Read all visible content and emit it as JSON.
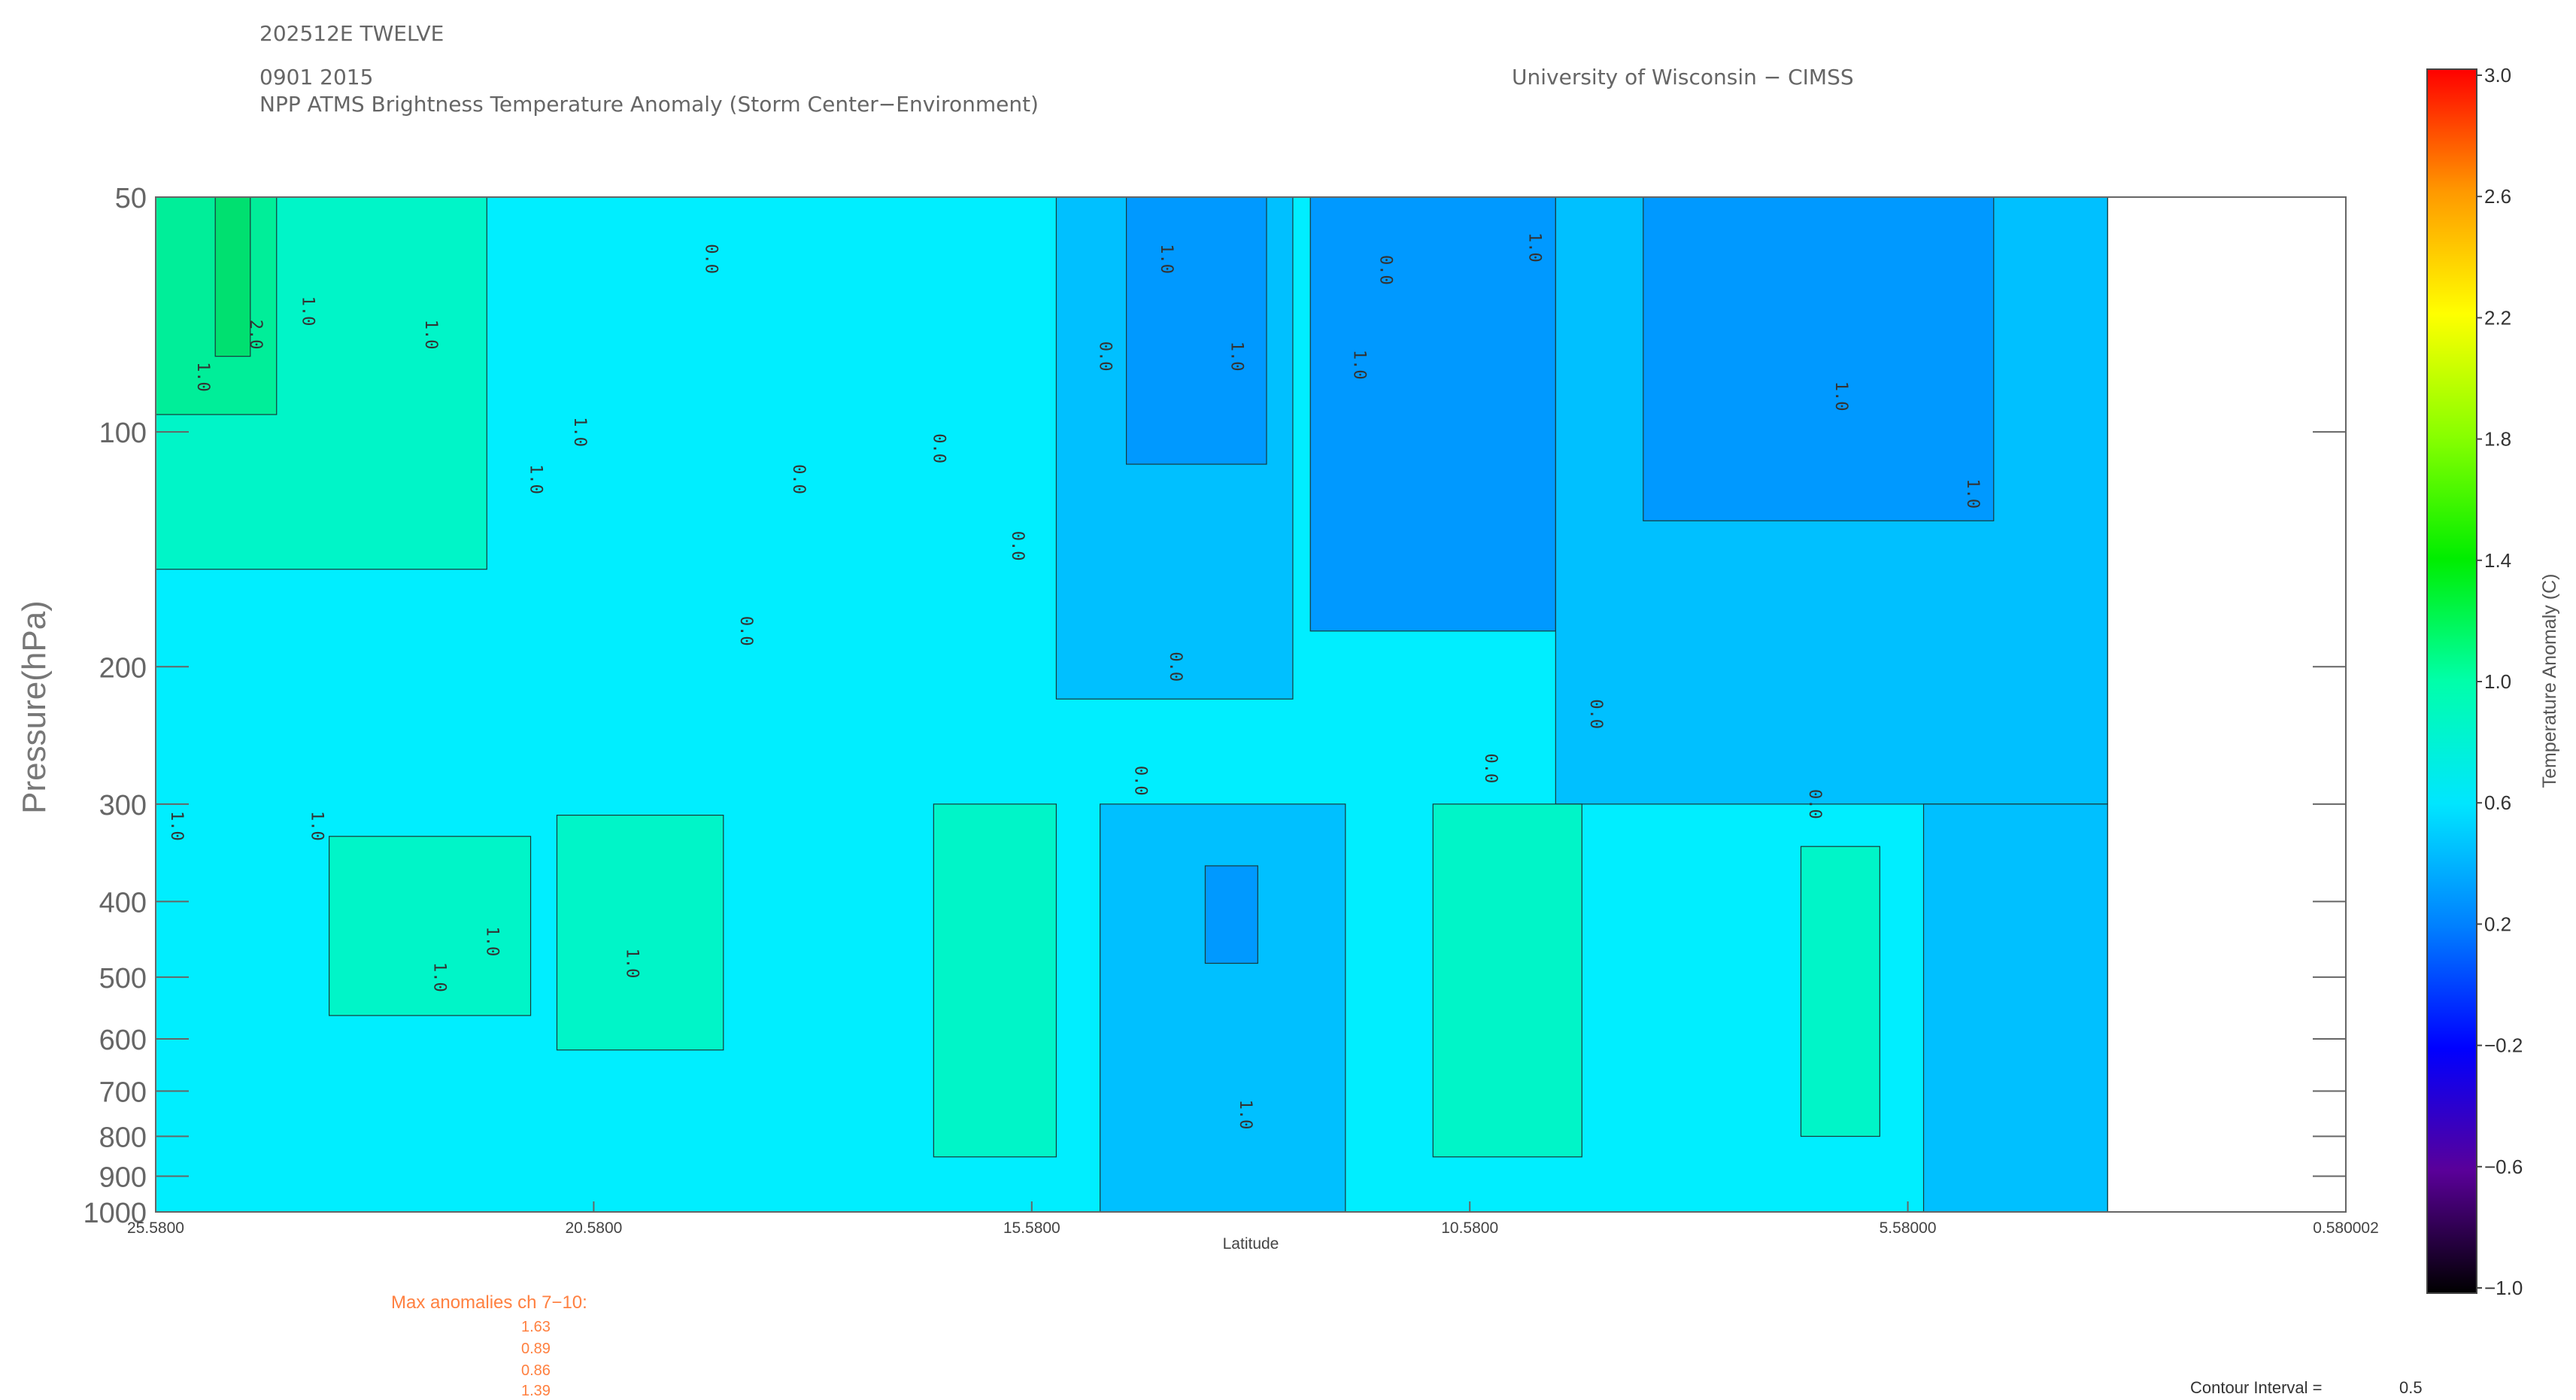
{
  "header": {
    "storm_id": "202512E TWELVE",
    "datetime": "0901 2015",
    "product": "NPP ATMS Brightness Temperature Anomaly (Storm Center−Environment)",
    "institution": "University of Wisconsin − CIMSS"
  },
  "chart_data": {
    "type": "heatmap",
    "title": "NPP ATMS Brightness Temperature Anomaly (Storm Center−Environment)",
    "xlabel": "Latitude",
    "ylabel": "Pressure(hPa)",
    "x_ticks": [
      "25.5800",
      "20.5800",
      "15.5800",
      "10.5800",
      "5.58000",
      "0.580002"
    ],
    "x_tick_values": [
      25.58,
      20.58,
      15.58,
      10.58,
      5.58,
      0.580002
    ],
    "xlim": [
      25.58,
      0.580002
    ],
    "y_ticks": [
      "50",
      "100",
      "200",
      "300",
      "400",
      "500",
      "600",
      "700",
      "800",
      "900",
      "1000"
    ],
    "y_tick_values": [
      50,
      100,
      200,
      300,
      400,
      500,
      600,
      700,
      800,
      900,
      1000
    ],
    "ylim": [
      1000,
      50
    ],
    "y_scale": "log",
    "data_xlim": [
      25.58,
      3.3
    ],
    "colorbar": {
      "title": "Temperature Anomaly (C)",
      "labels": [
        "3.0",
        "2.6",
        "2.2",
        "1.8",
        "1.4",
        "1.0",
        "0.6",
        "0.2",
        "−0.2",
        "−0.6",
        "−1.0"
      ],
      "values": [
        3.0,
        2.6,
        2.2,
        1.8,
        1.4,
        1.0,
        0.6,
        0.2,
        -0.2,
        -0.6,
        -1.0
      ],
      "range": [
        -1.0,
        3.0
      ]
    },
    "fill_colors": {
      "very_low": "#0099ff",
      "low": "#00c0ff",
      "mid": "#00eeff",
      "high": "#00f5c8",
      "very_high": "#00ee99",
      "peak": "#00e070"
    },
    "bands": [
      {
        "level": "mid",
        "lat_from": 25.58,
        "lat_to": 3.3,
        "p_top": 50,
        "p_bottom": 1000,
        "value": 0.6
      },
      {
        "level": "high",
        "lat_from": 25.58,
        "lat_to": 21.8,
        "p_top": 50,
        "p_bottom": 150,
        "value": 0.8
      },
      {
        "level": "very_high",
        "lat_from": 25.58,
        "lat_to": 24.2,
        "p_top": 50,
        "p_bottom": 95,
        "value": 1.0
      },
      {
        "level": "peak",
        "lat_from": 24.9,
        "lat_to": 24.5,
        "p_top": 50,
        "p_bottom": 80,
        "value": 1.2
      },
      {
        "level": "high",
        "lat_from": 23.6,
        "lat_to": 21.3,
        "p_top": 330,
        "p_bottom": 560,
        "value": 0.8
      },
      {
        "level": "high",
        "lat_from": 21.0,
        "lat_to": 19.1,
        "p_top": 310,
        "p_bottom": 620,
        "value": 0.8
      },
      {
        "level": "high",
        "lat_from": 16.7,
        "lat_to": 15.3,
        "p_top": 300,
        "p_bottom": 850,
        "value": 0.8
      },
      {
        "level": "low",
        "lat_from": 15.3,
        "lat_to": 12.6,
        "p_top": 50,
        "p_bottom": 220,
        "value": 0.4
      },
      {
        "level": "very_low",
        "lat_from": 14.5,
        "lat_to": 12.9,
        "p_top": 50,
        "p_bottom": 110,
        "value": 0.2
      },
      {
        "level": "low",
        "lat_from": 14.8,
        "lat_to": 12.0,
        "p_top": 300,
        "p_bottom": 1000,
        "value": 0.4
      },
      {
        "level": "very_low",
        "lat_from": 13.6,
        "lat_to": 13.0,
        "p_top": 360,
        "p_bottom": 480,
        "value": 0.2
      },
      {
        "level": "very_low",
        "lat_from": 12.4,
        "lat_to": 9.6,
        "p_top": 50,
        "p_bottom": 180,
        "value": 0.2
      },
      {
        "level": "low",
        "lat_from": 9.6,
        "lat_to": 3.3,
        "p_top": 50,
        "p_bottom": 300,
        "value": 0.4
      },
      {
        "level": "very_low",
        "lat_from": 8.6,
        "lat_to": 4.6,
        "p_top": 50,
        "p_bottom": 130,
        "value": 0.2
      },
      {
        "level": "high",
        "lat_from": 11.0,
        "lat_to": 9.3,
        "p_top": 300,
        "p_bottom": 850,
        "value": 0.8
      },
      {
        "level": "high",
        "lat_from": 6.8,
        "lat_to": 5.9,
        "p_top": 340,
        "p_bottom": 800,
        "value": 0.8
      },
      {
        "level": "low",
        "lat_from": 5.4,
        "lat_to": 3.3,
        "p_top": 300,
        "p_bottom": 1000,
        "value": 0.4
      }
    ],
    "contour_labels": [
      {
        "text": "2.0",
        "lat": 24.5,
        "p": 75
      },
      {
        "text": "1.0",
        "lat": 23.9,
        "p": 70
      },
      {
        "text": "1.0",
        "lat": 25.1,
        "p": 85
      },
      {
        "text": "1.0",
        "lat": 22.5,
        "p": 75
      },
      {
        "text": "1.0",
        "lat": 21.3,
        "p": 115
      },
      {
        "text": "1.0",
        "lat": 20.8,
        "p": 100
      },
      {
        "text": "0.0",
        "lat": 19.3,
        "p": 60
      },
      {
        "text": "0.0",
        "lat": 18.3,
        "p": 115
      },
      {
        "text": "0.0",
        "lat": 16.7,
        "p": 105
      },
      {
        "text": "0.0",
        "lat": 15.8,
        "p": 140
      },
      {
        "text": "0.0",
        "lat": 14.8,
        "p": 80
      },
      {
        "text": "0.0",
        "lat": 11.6,
        "p": 62
      },
      {
        "text": "0.0",
        "lat": 10.4,
        "p": 270
      },
      {
        "text": "0.0",
        "lat": 9.2,
        "p": 230
      },
      {
        "text": "0.0",
        "lat": 6.7,
        "p": 300
      },
      {
        "text": "0.0",
        "lat": 14.0,
        "p": 200
      },
      {
        "text": "0.0",
        "lat": 14.4,
        "p": 280
      },
      {
        "text": "0.0",
        "lat": 18.9,
        "p": 180
      },
      {
        "text": "1.0",
        "lat": 14.1,
        "p": 60
      },
      {
        "text": "1.0",
        "lat": 13.3,
        "p": 80
      },
      {
        "text": "1.0",
        "lat": 11.9,
        "p": 82
      },
      {
        "text": "1.0",
        "lat": 9.9,
        "p": 58
      },
      {
        "text": "1.0",
        "lat": 6.4,
        "p": 90
      },
      {
        "text": "1.0",
        "lat": 4.9,
        "p": 120
      },
      {
        "text": "1.0",
        "lat": 13.2,
        "p": 750
      },
      {
        "text": "1.0",
        "lat": 25.4,
        "p": 320
      },
      {
        "text": "1.0",
        "lat": 23.8,
        "p": 320
      },
      {
        "text": "1.0",
        "lat": 22.4,
        "p": 500
      },
      {
        "text": "1.0",
        "lat": 20.2,
        "p": 480
      },
      {
        "text": "1.0",
        "lat": 21.8,
        "p": 450
      }
    ]
  },
  "footer": {
    "max_title": "Max anomalies ch 7−10:",
    "max_values": [
      "1.63",
      "0.89",
      "0.86",
      "1.39"
    ],
    "contour_interval_label": "Contour Interval =",
    "contour_interval_value": "0.5"
  }
}
